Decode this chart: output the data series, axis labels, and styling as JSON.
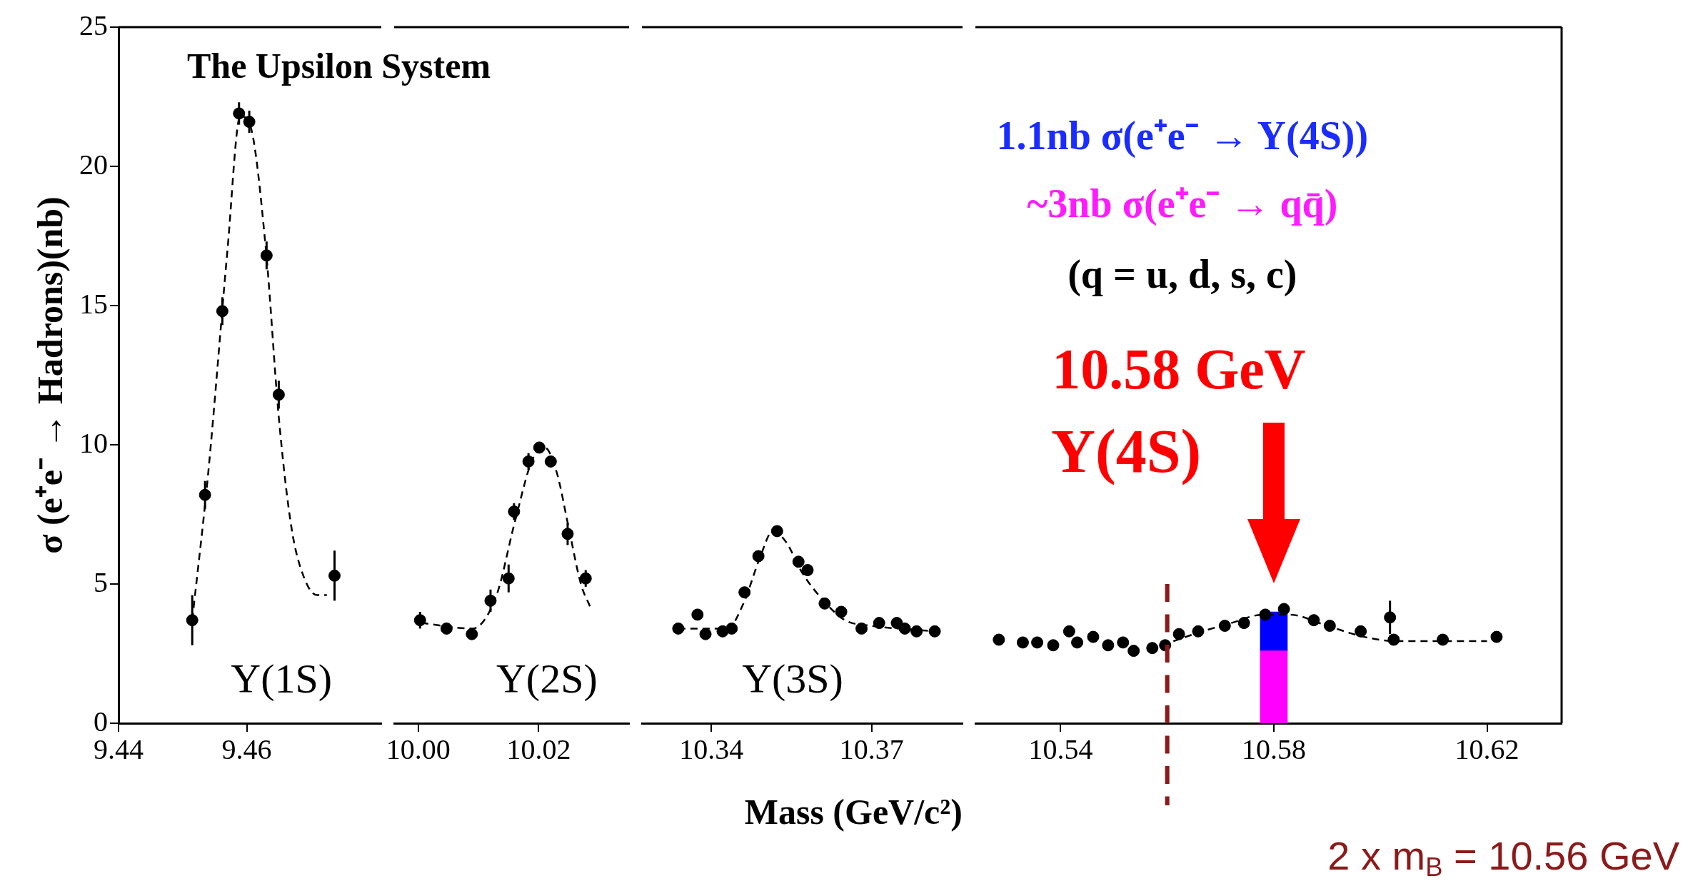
{
  "chart_data": [
    {
      "type": "scatter",
      "title": "The Upsilon System",
      "ylabel": "σ (e⁺e⁻ → Hadrons)(nb)",
      "xlim": [
        9.44,
        9.481
      ],
      "xticks": [
        9.44,
        9.46
      ],
      "ylim": [
        0,
        25
      ],
      "yticks": [
        0,
        5,
        10,
        15,
        20,
        25
      ],
      "annotations": [
        "Υ(1S)"
      ],
      "series": [
        {
          "color": "#000000",
          "marker": "circle",
          "x": [
            9.4515,
            9.4535,
            9.4562,
            9.4588,
            9.4604,
            9.4631,
            9.465,
            9.4737
          ],
          "values": [
            3.7,
            8.2,
            14.8,
            21.9,
            21.6,
            16.8,
            11.8,
            5.3
          ],
          "errors": [
            0.9,
            0.5,
            0.5,
            0.4,
            0.4,
            0.5,
            0.5,
            0.9
          ]
        },
        {
          "type": "line",
          "color": "#000000",
          "marker": "none",
          "line_style": "dashed",
          "x": [
            9.4515,
            9.454,
            9.457,
            9.459,
            9.4605,
            9.463,
            9.465,
            9.467,
            9.469,
            9.471,
            9.4725
          ],
          "values": [
            3.7,
            9,
            17,
            21.8,
            21.5,
            17,
            11,
            7,
            5.2,
            4.6,
            4.6
          ]
        }
      ]
    },
    {
      "type": "scatter",
      "xlim": [
        9.996,
        10.035
      ],
      "xticks": [
        {
          "value": 10,
          "label": "10.00"
        },
        10.02
      ],
      "ylim": [
        0,
        25
      ],
      "yticks": [
        0,
        5,
        10,
        15,
        20,
        25
      ],
      "tick_labels": "x",
      "annotations": [
        "Υ(2S)"
      ],
      "series": [
        {
          "color": "#000000",
          "marker": "circle",
          "x": [
            10.0003,
            10.0047,
            10.0089,
            10.012,
            10.015,
            10.0159,
            10.0183,
            10.0201,
            10.022,
            10.0248,
            10.0278
          ],
          "values": [
            3.7,
            3.4,
            3.2,
            4.4,
            5.2,
            7.6,
            9.4,
            9.9,
            9.4,
            6.8,
            5.2
          ],
          "errors": [
            0.3,
            0.2,
            0.2,
            0.4,
            0.5,
            0.3,
            0.3,
            0.2,
            0.2,
            0.4,
            0.3
          ]
        },
        {
          "type": "line",
          "color": "#000000",
          "marker": "none",
          "line_style": "dashed",
          "x": [
            10.0005,
            10.009,
            10.013,
            10.016,
            10.019,
            10.021,
            10.023,
            10.025,
            10.027,
            10.0285
          ],
          "values": [
            3.6,
            3.4,
            4.6,
            7.2,
            9.5,
            9.9,
            9.0,
            7.0,
            5.0,
            4.2
          ]
        }
      ]
    },
    {
      "type": "scatter",
      "xlabel": "Mass (GeV/c²)",
      "xlim": [
        10.327,
        10.387
      ],
      "xticks": [
        10.34,
        10.37
      ],
      "ylim": [
        0,
        25
      ],
      "yticks": [
        0,
        5,
        10,
        15,
        20,
        25
      ],
      "tick_labels": "x",
      "annotations": [
        "Υ(3S)"
      ],
      "series": [
        {
          "color": "#000000",
          "marker": "circle",
          "x": [
            10.3338,
            10.3374,
            10.3389,
            10.3421,
            10.3438,
            10.3462,
            10.3488,
            10.3523,
            10.3563,
            10.358,
            10.3612,
            10.3643,
            10.3681,
            10.3714,
            10.3747,
            10.3762,
            10.3784,
            10.3818
          ],
          "values": [
            3.4,
            3.9,
            3.2,
            3.3,
            3.4,
            4.7,
            6.0,
            6.9,
            5.8,
            5.5,
            4.3,
            4.0,
            3.4,
            3.6,
            3.6,
            3.4,
            3.3,
            3.3
          ]
        },
        {
          "type": "line",
          "color": "#000000",
          "marker": "none",
          "line_style": "dashed",
          "x": [
            10.3338,
            10.343,
            10.346,
            10.349,
            10.3515,
            10.354,
            10.357,
            10.361,
            10.365,
            10.37,
            10.382
          ],
          "values": [
            3.4,
            3.4,
            4.3,
            5.9,
            6.9,
            6.5,
            5.4,
            4.4,
            3.7,
            3.5,
            3.3
          ]
        }
      ]
    },
    {
      "type": "scatter",
      "xlim": [
        10.524,
        10.634
      ],
      "xticks": [
        10.54,
        10.58,
        10.62
      ],
      "ylim": [
        0,
        25
      ],
      "yticks": [
        0,
        5,
        10,
        15,
        20,
        25
      ],
      "tick_labels": "x",
      "stacked": true,
      "annotations": [
        "1.1nb σ(e⁺e⁻ → Y(4S))",
        "~3nb σ(e⁺e⁻ → qq̄)",
        "(q = u, d, s, c)",
        "10.58 GeV",
        "Υ(4S)"
      ],
      "ref_lines": [
        {
          "axis": "x",
          "value": 10.56,
          "label": "2 x m$_{B}$ = 10.56 GeV",
          "color": "#8b1a1a",
          "line_style": "dashed"
        }
      ],
      "series": [
        {
          "type": "bar",
          "color": "#ff00ff",
          "x": [
            10.58
          ],
          "values": [
            2.6
          ]
        },
        {
          "type": "bar",
          "color": "#0000ff",
          "x": [
            10.58
          ],
          "values": [
            1.4
          ]
        },
        {
          "color": "#000000",
          "marker": "circle",
          "x": [
            10.5284,
            10.5329,
            10.5356,
            10.5386,
            10.5416,
            10.5431,
            10.5461,
            10.5489,
            10.5517,
            10.5537,
            10.5572,
            10.5596,
            10.5622,
            10.5658,
            10.5708,
            10.5744,
            10.5784,
            10.5819,
            10.5875,
            10.5905,
            10.5963,
            10.6018,
            10.6025,
            10.6117,
            10.6218
          ],
          "values": [
            3.0,
            2.9,
            2.9,
            2.8,
            3.3,
            2.9,
            3.1,
            2.8,
            2.9,
            2.6,
            2.7,
            2.8,
            3.2,
            3.3,
            3.5,
            3.6,
            3.9,
            4.1,
            3.7,
            3.5,
            3.3,
            3.8,
            3.0,
            3.0,
            3.1
          ],
          "errors": [
            null,
            null,
            null,
            null,
            null,
            null,
            null,
            null,
            null,
            null,
            null,
            null,
            null,
            null,
            null,
            null,
            null,
            null,
            null,
            null,
            null,
            0.6,
            null,
            null,
            null
          ]
        },
        {
          "type": "line",
          "color": "#000000",
          "marker": "none",
          "line_style": "dashed",
          "x": [
            10.559,
            10.565,
            10.572,
            10.578,
            10.583,
            10.59,
            10.597,
            10.603,
            10.615,
            10.62
          ],
          "values": [
            2.8,
            3.2,
            3.6,
            3.9,
            3.9,
            3.5,
            3.1,
            2.95,
            2.95,
            2.95
          ]
        }
      ]
    }
  ]
}
